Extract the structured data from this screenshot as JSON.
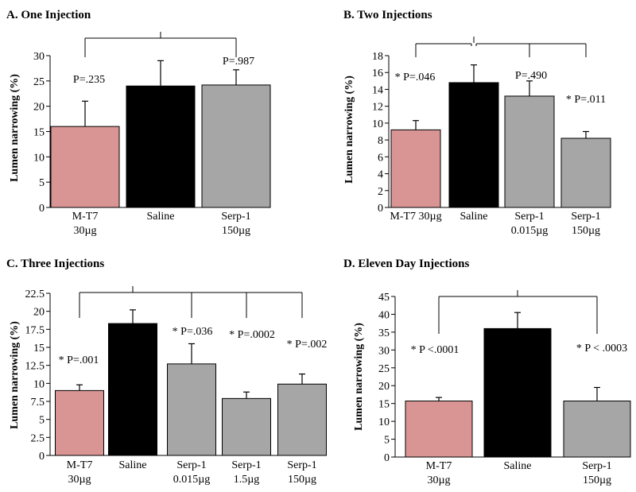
{
  "colors": {
    "mt7": "#d99594",
    "saline": "#000000",
    "serp": "#a6a6a6"
  },
  "chart_data": [
    {
      "type": "bar",
      "title": "A. One Injection",
      "ylabel": "Lumen narrowing (%)",
      "ylim": [
        0,
        30
      ],
      "yticks": [
        "0",
        "5",
        "10",
        "15",
        "20",
        "25",
        "30"
      ],
      "categories": [
        [
          "M-T7",
          "30µg"
        ],
        [
          "Saline"
        ],
        [
          "Serp-1",
          "150µg"
        ]
      ],
      "values": [
        16,
        24,
        24.2
      ],
      "errors": [
        5,
        5,
        3
      ],
      "bar_colors": [
        "mt7",
        "saline",
        "serp"
      ],
      "annotations": [
        "P=.235",
        "",
        "P=.987"
      ],
      "bracket": {
        "from": 0,
        "to": 2
      }
    },
    {
      "type": "bar",
      "title": "B. Two Injections",
      "ylabel": "Lumen narrowing (%)",
      "ylim": [
        0,
        18
      ],
      "yticks": [
        "0",
        "2",
        "4",
        "6",
        "8",
        "10",
        "12",
        "14",
        "16",
        "18"
      ],
      "categories": [
        [
          "M-T7 30µg"
        ],
        [
          "Saline"
        ],
        [
          "Serp-1",
          "0.015µg"
        ],
        [
          "Serp-1",
          "150µg"
        ]
      ],
      "values": [
        9.2,
        14.8,
        13.2,
        8.2
      ],
      "errors": [
        1.1,
        2.1,
        1.8,
        0.8
      ],
      "bar_colors": [
        "mt7",
        "saline",
        "serp",
        "serp"
      ],
      "annotations": [
        "* P=.046",
        "",
        "P=.490",
        "* P=.011"
      ],
      "bracket": {
        "from": 0,
        "to": 3
      }
    },
    {
      "type": "bar",
      "title": "C. Three Injections",
      "ylabel": "Lumen narrowing (%)",
      "ylim": [
        0,
        22.5
      ],
      "yticks": [
        "0",
        "2.5",
        "5",
        "7.5",
        "10",
        "12.5",
        "15",
        "17.5",
        "20",
        "22.5"
      ],
      "categories": [
        [
          "M-T7",
          "30µg"
        ],
        [
          "Saline"
        ],
        [
          "Serp-1",
          "0.015µg"
        ],
        [
          "Serp-1",
          "1.5µg"
        ],
        [
          "Serp-1",
          "150µg"
        ]
      ],
      "values": [
        9,
        18.3,
        12.7,
        7.9,
        9.9
      ],
      "errors": [
        0.8,
        1.9,
        2.8,
        0.9,
        1.4
      ],
      "bar_colors": [
        "mt7",
        "saline",
        "serp",
        "serp",
        "serp"
      ],
      "annotations": [
        "* P=.001",
        "",
        "* P=.036",
        "* P=.0002",
        "* P=.002"
      ],
      "bracket": {
        "from": 0,
        "to": 4
      }
    },
    {
      "type": "bar",
      "title": "D. Eleven Day  Injections",
      "ylabel": "Lumen narrowing (%)",
      "ylim": [
        0,
        45
      ],
      "yticks": [
        "0",
        "5",
        "10",
        "15",
        "20",
        "25",
        "30",
        "35",
        "40",
        "45"
      ],
      "categories": [
        [
          "M-T7",
          "30µg"
        ],
        [
          "Saline"
        ],
        [
          "Serp-1",
          "150µg"
        ]
      ],
      "values": [
        15.7,
        36,
        15.7
      ],
      "errors": [
        1,
        4.5,
        3.8
      ],
      "bar_colors": [
        "mt7",
        "saline",
        "serp"
      ],
      "annotations": [
        "* P <.0001",
        "",
        "* P < .0003"
      ],
      "bracket": {
        "from": 0,
        "to": 2
      }
    }
  ]
}
